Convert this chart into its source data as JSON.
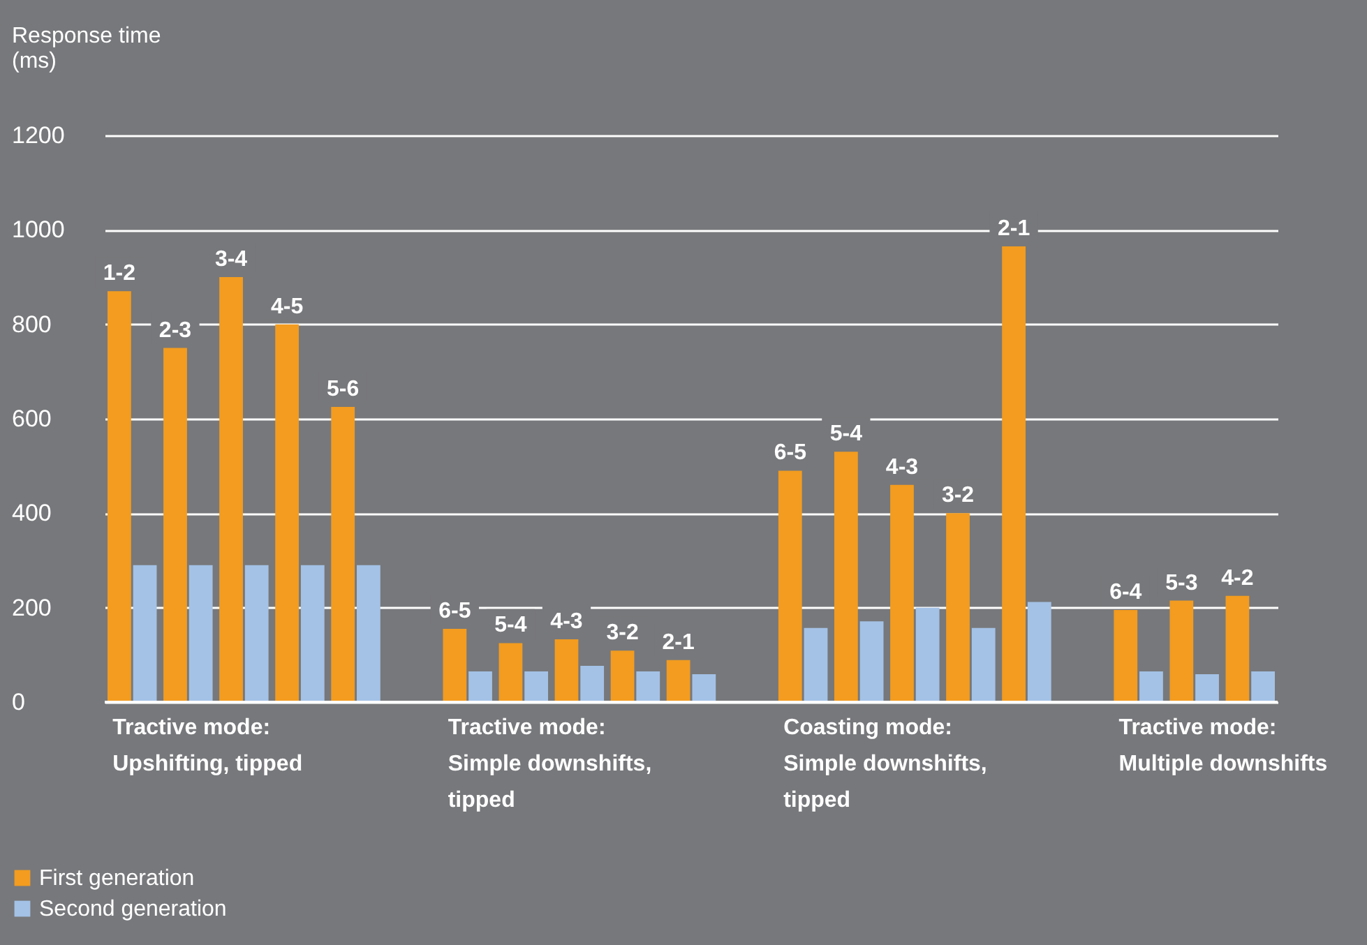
{
  "chart_data": {
    "type": "bar",
    "ylabel": "Response time\n(ms)",
    "categories": [
      "1-2",
      "2-3",
      "3-4",
      "4-5",
      "5-6",
      null,
      "6-5",
      "5-4",
      "4-3",
      "3-2",
      "2-1",
      null,
      "6-5",
      "5-4",
      "4-3",
      "3-2",
      "2-1",
      null,
      "6-4",
      "5-3",
      "4-2"
    ],
    "series": [
      {
        "name": "First generation",
        "color": "#f39c1f",
        "values": [
          870,
          750,
          900,
          800,
          625,
          null,
          155,
          125,
          133,
          109,
          89,
          null,
          490,
          530,
          460,
          400,
          965,
          null,
          195,
          215,
          225
        ]
      },
      {
        "name": "Second generation",
        "color": "#a4c2e6",
        "values": [
          290,
          290,
          290,
          290,
          290,
          null,
          65,
          65,
          77,
          65,
          59,
          null,
          157,
          171,
          200,
          157,
          212,
          null,
          65,
          59,
          65
        ]
      }
    ],
    "ylim": [
      0,
      1200
    ],
    "yticks": [
      0,
      200,
      400,
      600,
      800,
      {
        "value": 1000,
        "label": "1000"
      },
      {
        "value": 1200,
        "label": "1200"
      }
    ],
    "grid": "y",
    "legend": "bottom",
    "annotations": [
      "Tractive mode:\nUpshifting, tipped",
      "Tractive mode:\nSimple downshifts,\ntipped",
      "Coasting mode:\nSimple downshifts,\ntipped",
      "Tractive mode:\nMultiple downshifts"
    ]
  }
}
